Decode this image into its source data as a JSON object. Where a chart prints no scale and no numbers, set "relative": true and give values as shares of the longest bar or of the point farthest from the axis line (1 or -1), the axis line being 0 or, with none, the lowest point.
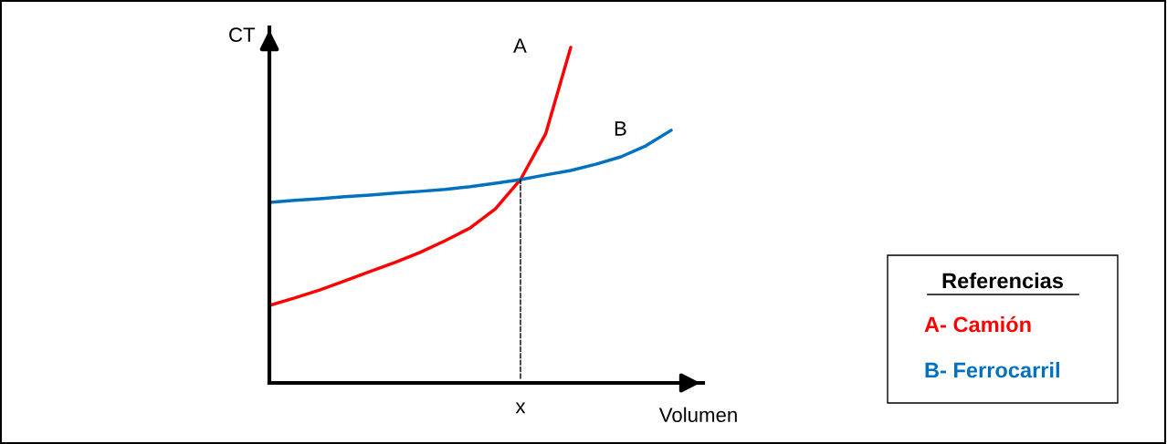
{
  "chart_data": {
    "type": "line",
    "relative": true,
    "xlabel": "Volumen",
    "ylabel": "CT",
    "categories": [
      null,
      null,
      null,
      null,
      null,
      null,
      null,
      null,
      null,
      null,
      null,
      null,
      null,
      null,
      null,
      null,
      null
    ],
    "series": [
      {
        "name": "A",
        "color": "#ff0000",
        "values": [
          0.231,
          0.253,
          0.277,
          0.304,
          0.332,
          0.359,
          0.389,
          0.424,
          0.462,
          0.519,
          0.606,
          0.742,
          1.0,
          null,
          null,
          null,
          null
        ]
      },
      {
        "name": "B",
        "color": "#0070c0",
        "values": [
          0.538,
          0.544,
          0.549,
          0.555,
          0.56,
          0.566,
          0.571,
          0.577,
          0.585,
          0.595,
          0.606,
          0.62,
          0.633,
          0.652,
          0.674,
          0.707,
          0.753
        ]
      }
    ],
    "legend_title": "Referencias",
    "annotations": [
      "A- Camión",
      "B- Ferrocarril",
      {
        "text": "x",
        "y": 0.606
      }
    ],
    "marker": "none",
    "line_style": "solid"
  }
}
